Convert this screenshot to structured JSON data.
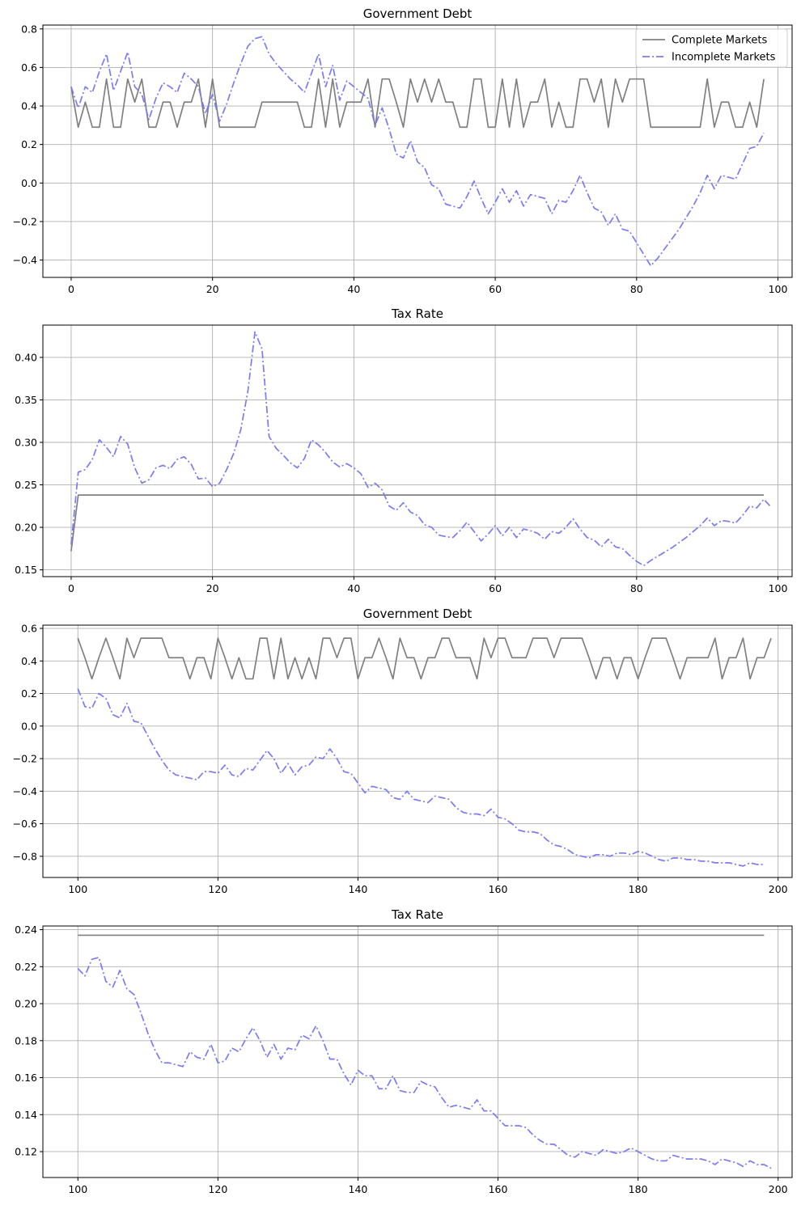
{
  "chart_data": [
    {
      "type": "line",
      "title": "Government Debt",
      "xlabel": "",
      "ylabel": "",
      "xlim": [
        -4,
        102
      ],
      "ylim": [
        -0.49,
        0.82
      ],
      "xticks": [
        0,
        20,
        40,
        60,
        80,
        100
      ],
      "yticks": [
        -0.4,
        -0.2,
        0.0,
        0.2,
        0.4,
        0.6,
        0.8
      ],
      "ytick_labels": [
        "−0.4",
        "−0.2",
        "0.0",
        "0.2",
        "0.4",
        "0.6",
        "0.8"
      ],
      "grid": true,
      "legend": "top-right",
      "x_start": 0,
      "series": [
        {
          "name": "Complete Markets",
          "color": "#808080",
          "style": "solid",
          "values": [
            0.5,
            0.29,
            0.42,
            0.29,
            0.29,
            0.54,
            0.29,
            0.29,
            0.54,
            0.42,
            0.54,
            0.29,
            0.29,
            0.42,
            0.42,
            0.29,
            0.42,
            0.42,
            0.54,
            0.29,
            0.54,
            0.29,
            0.29,
            0.29,
            0.29,
            0.29,
            0.29,
            0.42,
            0.42,
            0.42,
            0.42,
            0.42,
            0.42,
            0.29,
            0.29,
            0.54,
            0.29,
            0.54,
            0.29,
            0.42,
            0.42,
            0.42,
            0.54,
            0.29,
            0.54,
            0.54,
            0.42,
            0.29,
            0.54,
            0.42,
            0.54,
            0.42,
            0.54,
            0.42,
            0.42,
            0.29,
            0.29,
            0.54,
            0.54,
            0.29,
            0.29,
            0.54,
            0.29,
            0.54,
            0.29,
            0.42,
            0.42,
            0.54,
            0.29,
            0.42,
            0.29,
            0.29,
            0.54,
            0.54,
            0.42,
            0.54,
            0.29,
            0.54,
            0.42,
            0.54,
            0.54,
            0.54,
            0.29,
            0.29,
            0.29,
            0.29,
            0.29,
            0.29,
            0.29,
            0.29,
            0.54,
            0.29,
            0.42,
            0.42,
            0.29,
            0.29,
            0.42,
            0.29,
            0.54
          ]
        },
        {
          "name": "Incomplete Markets",
          "color": "#7b7bf5",
          "style": "dashdot",
          "values": [
            0.5,
            0.39,
            0.5,
            0.47,
            0.58,
            0.67,
            0.48,
            0.58,
            0.68,
            0.5,
            0.46,
            0.33,
            0.44,
            0.52,
            0.5,
            0.47,
            0.57,
            0.54,
            0.5,
            0.36,
            0.46,
            0.32,
            0.41,
            0.52,
            0.62,
            0.71,
            0.75,
            0.76,
            0.67,
            0.62,
            0.58,
            0.54,
            0.51,
            0.47,
            0.57,
            0.67,
            0.5,
            0.61,
            0.43,
            0.53,
            0.5,
            0.47,
            0.44,
            0.3,
            0.39,
            0.28,
            0.15,
            0.13,
            0.22,
            0.11,
            0.08,
            -0.01,
            -0.03,
            -0.11,
            -0.12,
            -0.13,
            -0.07,
            0.01,
            -0.08,
            -0.16,
            -0.1,
            -0.03,
            -0.1,
            -0.04,
            -0.12,
            -0.06,
            -0.07,
            -0.08,
            -0.16,
            -0.09,
            -0.1,
            -0.04,
            0.04,
            -0.05,
            -0.13,
            -0.15,
            -0.22,
            -0.16,
            -0.24,
            -0.25,
            -0.31,
            -0.37,
            -0.43,
            -0.39,
            -0.34,
            -0.29,
            -0.24,
            -0.18,
            -0.12,
            -0.05,
            0.04,
            -0.03,
            0.04,
            0.03,
            0.02,
            0.1,
            0.18,
            0.19,
            0.26
          ]
        }
      ]
    },
    {
      "type": "line",
      "title": "Tax Rate",
      "xlabel": "",
      "ylabel": "",
      "xlim": [
        -4,
        102
      ],
      "ylim": [
        0.142,
        0.438
      ],
      "xticks": [
        0,
        20,
        40,
        60,
        80,
        100
      ],
      "yticks": [
        0.15,
        0.2,
        0.25,
        0.3,
        0.35,
        0.4
      ],
      "ytick_labels": [
        "0.15",
        "0.20",
        "0.25",
        "0.30",
        "0.35",
        "0.40"
      ],
      "grid": true,
      "x_start": 0,
      "series": [
        {
          "name": "",
          "color": "#808080",
          "style": "solid",
          "values": [
            0.172,
            0.238,
            0.238,
            0.238,
            0.238,
            0.238,
            0.238,
            0.238,
            0.238,
            0.238,
            0.238,
            0.238,
            0.238,
            0.238,
            0.238,
            0.238,
            0.238,
            0.238,
            0.238,
            0.238,
            0.238,
            0.238,
            0.238,
            0.238,
            0.238,
            0.238,
            0.238,
            0.238,
            0.238,
            0.238,
            0.238,
            0.238,
            0.238,
            0.238,
            0.238,
            0.238,
            0.238,
            0.238,
            0.238,
            0.238,
            0.238,
            0.238,
            0.238,
            0.238,
            0.238,
            0.238,
            0.238,
            0.238,
            0.238,
            0.238,
            0.238,
            0.238,
            0.238,
            0.238,
            0.238,
            0.238,
            0.238,
            0.238,
            0.238,
            0.238,
            0.238,
            0.238,
            0.238,
            0.238,
            0.238,
            0.238,
            0.238,
            0.238,
            0.238,
            0.238,
            0.238,
            0.238,
            0.238,
            0.238,
            0.238,
            0.238,
            0.238,
            0.238,
            0.238,
            0.238,
            0.238,
            0.238,
            0.238,
            0.238,
            0.238,
            0.238,
            0.238,
            0.238,
            0.238,
            0.238,
            0.238,
            0.238,
            0.238,
            0.238,
            0.238,
            0.238,
            0.238,
            0.238,
            0.238
          ]
        },
        {
          "name": "",
          "color": "#7b7bf5",
          "style": "dashdot",
          "values": [
            0.18,
            0.265,
            0.268,
            0.28,
            0.303,
            0.294,
            0.283,
            0.307,
            0.298,
            0.27,
            0.252,
            0.256,
            0.27,
            0.273,
            0.269,
            0.28,
            0.283,
            0.274,
            0.257,
            0.258,
            0.248,
            0.252,
            0.268,
            0.287,
            0.315,
            0.36,
            0.43,
            0.41,
            0.307,
            0.293,
            0.285,
            0.276,
            0.27,
            0.281,
            0.303,
            0.297,
            0.288,
            0.277,
            0.271,
            0.275,
            0.27,
            0.263,
            0.247,
            0.252,
            0.244,
            0.225,
            0.22,
            0.229,
            0.218,
            0.214,
            0.203,
            0.2,
            0.191,
            0.189,
            0.188,
            0.196,
            0.206,
            0.195,
            0.184,
            0.192,
            0.202,
            0.19,
            0.2,
            0.188,
            0.198,
            0.196,
            0.193,
            0.186,
            0.195,
            0.193,
            0.2,
            0.21,
            0.198,
            0.188,
            0.185,
            0.177,
            0.186,
            0.177,
            0.175,
            0.167,
            0.16,
            0.155,
            0.161,
            0.166,
            0.171,
            0.176,
            0.182,
            0.188,
            0.195,
            0.202,
            0.211,
            0.202,
            0.208,
            0.207,
            0.205,
            0.214,
            0.225,
            0.223,
            0.233,
            0.224
          ]
        }
      ]
    },
    {
      "type": "line",
      "title": "Government Debt",
      "xlabel": "",
      "ylabel": "",
      "xlim": [
        95,
        202
      ],
      "ylim": [
        -0.93,
        0.62
      ],
      "xticks": [
        100,
        120,
        140,
        160,
        180,
        200
      ],
      "yticks": [
        -0.8,
        -0.6,
        -0.4,
        -0.2,
        0.0,
        0.2,
        0.4,
        0.6
      ],
      "ytick_labels": [
        "−0.8",
        "−0.6",
        "−0.4",
        "−0.2",
        "0.0",
        "0.2",
        "0.4",
        "0.6"
      ],
      "grid": true,
      "x_start": 100,
      "series": [
        {
          "name": "",
          "color": "#808080",
          "style": "solid",
          "values": [
            0.54,
            0.42,
            0.29,
            0.42,
            0.54,
            0.42,
            0.29,
            0.54,
            0.42,
            0.54,
            0.54,
            0.54,
            0.54,
            0.42,
            0.42,
            0.42,
            0.29,
            0.42,
            0.42,
            0.29,
            0.54,
            0.42,
            0.29,
            0.42,
            0.29,
            0.29,
            0.54,
            0.54,
            0.29,
            0.54,
            0.29,
            0.42,
            0.29,
            0.42,
            0.29,
            0.54,
            0.54,
            0.42,
            0.54,
            0.54,
            0.29,
            0.42,
            0.42,
            0.54,
            0.42,
            0.29,
            0.54,
            0.42,
            0.42,
            0.29,
            0.42,
            0.42,
            0.54,
            0.54,
            0.42,
            0.42,
            0.42,
            0.29,
            0.54,
            0.42,
            0.54,
            0.54,
            0.42,
            0.42,
            0.42,
            0.54,
            0.54,
            0.54,
            0.42,
            0.54,
            0.54,
            0.54,
            0.54,
            0.42,
            0.29,
            0.42,
            0.42,
            0.29,
            0.42,
            0.42,
            0.29,
            0.42,
            0.54,
            0.54,
            0.54,
            0.42,
            0.29,
            0.42,
            0.42,
            0.42,
            0.42,
            0.54,
            0.29,
            0.42,
            0.42,
            0.54,
            0.29,
            0.42,
            0.42,
            0.54
          ]
        },
        {
          "name": "",
          "color": "#7b7bf5",
          "style": "dashdot",
          "values": [
            0.23,
            0.12,
            0.11,
            0.2,
            0.17,
            0.07,
            0.05,
            0.14,
            0.03,
            0.02,
            -0.06,
            -0.14,
            -0.21,
            -0.27,
            -0.3,
            -0.31,
            -0.32,
            -0.33,
            -0.28,
            -0.28,
            -0.29,
            -0.24,
            -0.3,
            -0.31,
            -0.26,
            -0.27,
            -0.21,
            -0.15,
            -0.2,
            -0.29,
            -0.23,
            -0.3,
            -0.25,
            -0.24,
            -0.19,
            -0.2,
            -0.14,
            -0.2,
            -0.28,
            -0.29,
            -0.35,
            -0.41,
            -0.37,
            -0.38,
            -0.39,
            -0.44,
            -0.45,
            -0.4,
            -0.45,
            -0.46,
            -0.47,
            -0.43,
            -0.44,
            -0.45,
            -0.5,
            -0.53,
            -0.54,
            -0.54,
            -0.55,
            -0.51,
            -0.56,
            -0.57,
            -0.6,
            -0.64,
            -0.65,
            -0.65,
            -0.66,
            -0.7,
            -0.73,
            -0.74,
            -0.76,
            -0.79,
            -0.8,
            -0.81,
            -0.79,
            -0.79,
            -0.8,
            -0.78,
            -0.78,
            -0.79,
            -0.77,
            -0.78,
            -0.8,
            -0.82,
            -0.83,
            -0.81,
            -0.81,
            -0.82,
            -0.82,
            -0.83,
            -0.83,
            -0.84,
            -0.84,
            -0.84,
            -0.85,
            -0.86,
            -0.84,
            -0.85,
            -0.85
          ]
        }
      ]
    },
    {
      "type": "line",
      "title": "Tax Rate",
      "xlabel": "",
      "ylabel": "",
      "xlim": [
        95,
        202
      ],
      "ylim": [
        0.106,
        0.242
      ],
      "xticks": [
        100,
        120,
        140,
        160,
        180,
        200
      ],
      "yticks": [
        0.12,
        0.14,
        0.16,
        0.18,
        0.2,
        0.22,
        0.24
      ],
      "ytick_labels": [
        "0.12",
        "0.14",
        "0.16",
        "0.18",
        "0.20",
        "0.22",
        "0.24"
      ],
      "grid": true,
      "x_start": 100,
      "series": [
        {
          "name": "",
          "color": "#808080",
          "style": "solid",
          "values": [
            0.237,
            0.237,
            0.237,
            0.237,
            0.237,
            0.237,
            0.237,
            0.237,
            0.237,
            0.237,
            0.237,
            0.237,
            0.237,
            0.237,
            0.237,
            0.237,
            0.237,
            0.237,
            0.237,
            0.237,
            0.237,
            0.237,
            0.237,
            0.237,
            0.237,
            0.237,
            0.237,
            0.237,
            0.237,
            0.237,
            0.237,
            0.237,
            0.237,
            0.237,
            0.237,
            0.237,
            0.237,
            0.237,
            0.237,
            0.237,
            0.237,
            0.237,
            0.237,
            0.237,
            0.237,
            0.237,
            0.237,
            0.237,
            0.237,
            0.237,
            0.237,
            0.237,
            0.237,
            0.237,
            0.237,
            0.237,
            0.237,
            0.237,
            0.237,
            0.237,
            0.237,
            0.237,
            0.237,
            0.237,
            0.237,
            0.237,
            0.237,
            0.237,
            0.237,
            0.237,
            0.237,
            0.237,
            0.237,
            0.237,
            0.237,
            0.237,
            0.237,
            0.237,
            0.237,
            0.237,
            0.237,
            0.237,
            0.237,
            0.237,
            0.237,
            0.237,
            0.237,
            0.237,
            0.237,
            0.237,
            0.237,
            0.237,
            0.237,
            0.237,
            0.237,
            0.237,
            0.237,
            0.237,
            0.237
          ]
        },
        {
          "name": "",
          "color": "#7b7bf5",
          "style": "dashdot",
          "values": [
            0.219,
            0.215,
            0.224,
            0.225,
            0.212,
            0.209,
            0.218,
            0.208,
            0.205,
            0.195,
            0.184,
            0.175,
            0.168,
            0.168,
            0.167,
            0.166,
            0.174,
            0.171,
            0.17,
            0.178,
            0.168,
            0.169,
            0.176,
            0.174,
            0.181,
            0.187,
            0.18,
            0.171,
            0.178,
            0.17,
            0.176,
            0.175,
            0.183,
            0.181,
            0.188,
            0.18,
            0.17,
            0.17,
            0.162,
            0.156,
            0.164,
            0.161,
            0.161,
            0.154,
            0.154,
            0.161,
            0.153,
            0.152,
            0.152,
            0.158,
            0.156,
            0.155,
            0.149,
            0.144,
            0.145,
            0.144,
            0.143,
            0.148,
            0.142,
            0.142,
            0.138,
            0.134,
            0.134,
            0.134,
            0.133,
            0.129,
            0.126,
            0.124,
            0.124,
            0.121,
            0.118,
            0.117,
            0.12,
            0.119,
            0.118,
            0.121,
            0.12,
            0.119,
            0.12,
            0.122,
            0.12,
            0.118,
            0.116,
            0.115,
            0.115,
            0.118,
            0.117,
            0.116,
            0.116,
            0.116,
            0.115,
            0.113,
            0.116,
            0.115,
            0.114,
            0.112,
            0.115,
            0.113,
            0.113,
            0.111
          ]
        }
      ]
    }
  ]
}
